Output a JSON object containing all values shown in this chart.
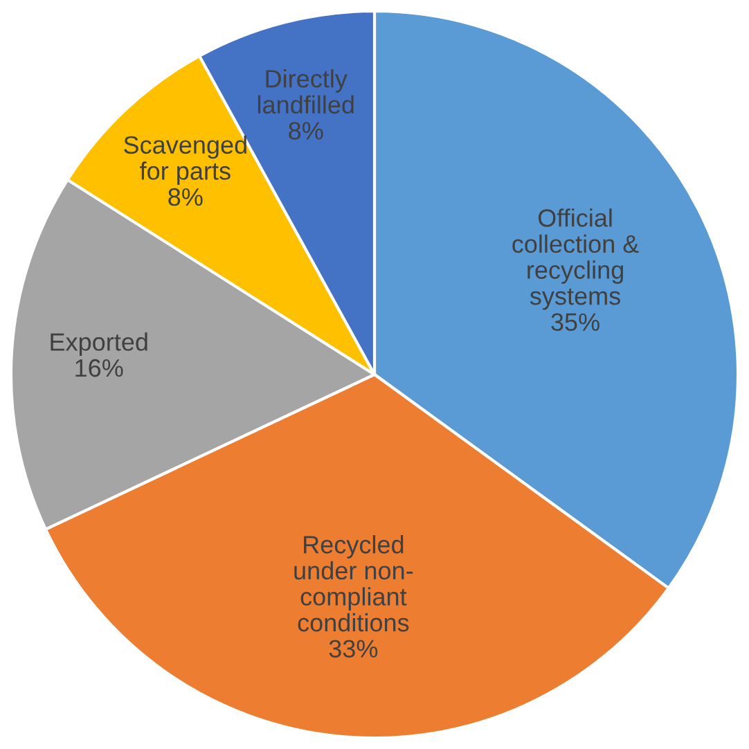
{
  "chart_data": {
    "type": "pie",
    "categories": [
      "Official\ncollection &\nrecycling\nsystems",
      "Recycled\nunder non-\ncompliant\nconditions",
      "Exported",
      "Scavenged\nfor parts",
      "Directly\nlandfilled"
    ],
    "values": [
      35,
      33,
      16,
      8,
      8
    ],
    "colors": [
      "#5b9bd5",
      "#ed7d31",
      "#a5a5a5",
      "#ffc000",
      "#4472c4"
    ],
    "value_labels": [
      "35%",
      "33%",
      "16%",
      "8%",
      "8%"
    ]
  }
}
